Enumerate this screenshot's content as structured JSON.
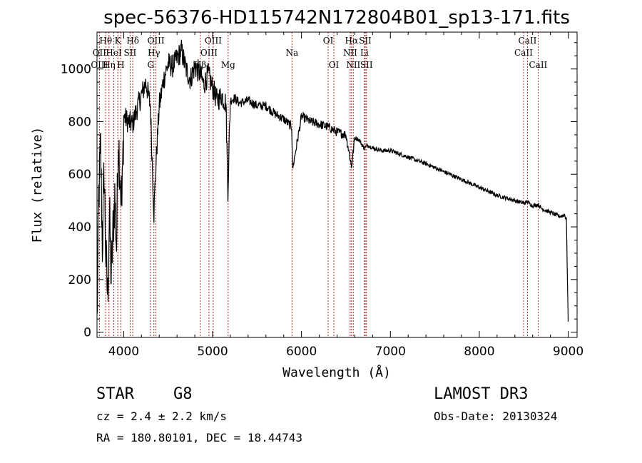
{
  "chart_data": {
    "type": "line",
    "title": "spec-56376-HD115742N172804B01_sp13-171.fits",
    "xlabel": "Wavelength (Å)",
    "ylabel": "Flux (relative)",
    "xlim": [
      3700,
      9100
    ],
    "ylim": [
      -20,
      1140
    ],
    "xticks": [
      4000,
      5000,
      6000,
      7000,
      8000,
      9000
    ],
    "yticks": [
      0,
      200,
      400,
      600,
      800,
      1000
    ],
    "series": [
      {
        "name": "spectrum",
        "x": [
          3700,
          3720,
          3740,
          3760,
          3780,
          3800,
          3820,
          3840,
          3860,
          3880,
          3900,
          3920,
          3940,
          3960,
          3980,
          4000,
          4050,
          4100,
          4150,
          4200,
          4250,
          4300,
          4340,
          4360,
          4400,
          4450,
          4500,
          4550,
          4600,
          4650,
          4700,
          4750,
          4800,
          4860,
          4900,
          4950,
          5000,
          5050,
          5100,
          5150,
          5172,
          5200,
          5250,
          5300,
          5400,
          5500,
          5600,
          5700,
          5800,
          5890,
          5900,
          6000,
          6100,
          6200,
          6300,
          6400,
          6500,
          6563,
          6600,
          6650,
          6700,
          6750,
          6800,
          6900,
          7000,
          7200,
          7400,
          7600,
          7800,
          8000,
          8200,
          8400,
          8498,
          8542,
          8600,
          8662,
          8700,
          8800,
          8900,
          8960,
          8980,
          9000
        ],
        "y": [
          30,
          520,
          700,
          330,
          620,
          280,
          130,
          450,
          200,
          380,
          520,
          330,
          750,
          600,
          470,
          820,
          800,
          790,
          850,
          900,
          950,
          860,
          450,
          620,
          860,
          960,
          1020,
          1010,
          1040,
          1070,
          1000,
          960,
          1010,
          980,
          940,
          980,
          930,
          880,
          900,
          870,
          540,
          880,
          890,
          870,
          880,
          860,
          860,
          830,
          810,
          780,
          620,
          820,
          800,
          790,
          780,
          760,
          750,
          630,
          740,
          730,
          700,
          710,
          700,
          690,
          690,
          665,
          640,
          610,
          580,
          550,
          520,
          500,
          490,
          495,
          480,
          485,
          470,
          455,
          440,
          445,
          430,
          40
        ]
      }
    ],
    "emission_lines": [
      {
        "label": "Hθ",
        "x": 3798,
        "row": 1
      },
      {
        "label": "OII",
        "x": 3727,
        "row": 2
      },
      {
        "label": "OIII",
        "x": 3727,
        "row": 3
      },
      {
        "label": "Hη",
        "x": 3835,
        "row": 3
      },
      {
        "label": "HeI",
        "x": 3889,
        "row": 2
      },
      {
        "label": "K",
        "x": 3934,
        "row": 1
      },
      {
        "label": "H",
        "x": 3968,
        "row": 3
      },
      {
        "label": "SII",
        "x": 4072,
        "row": 2
      },
      {
        "label": "Hδ",
        "x": 4102,
        "row": 1
      },
      {
        "label": "OIII",
        "x": 4363,
        "row": 1
      },
      {
        "label": "Hγ",
        "x": 4340,
        "row": 2
      },
      {
        "label": "G",
        "x": 4304,
        "row": 3
      },
      {
        "label": "OIII",
        "x": 5007,
        "row": 1
      },
      {
        "label": "OIII",
        "x": 4959,
        "row": 2
      },
      {
        "label": "Hβ",
        "x": 4861,
        "row": 3
      },
      {
        "label": "Mg",
        "x": 5175,
        "row": 3
      },
      {
        "label": "Na",
        "x": 5893,
        "row": 2
      },
      {
        "label": "OI",
        "x": 6300,
        "row": 1
      },
      {
        "label": "OI",
        "x": 6364,
        "row": 3
      },
      {
        "label": "Hα",
        "x": 6563,
        "row": 1
      },
      {
        "label": "NII",
        "x": 6548,
        "row": 2
      },
      {
        "label": "NII",
        "x": 6583,
        "row": 3
      },
      {
        "label": "SII",
        "x": 6717,
        "row": 1
      },
      {
        "label": "Li",
        "x": 6708,
        "row": 2
      },
      {
        "label": "SII",
        "x": 6731,
        "row": 3
      },
      {
        "label": "CaII",
        "x": 8542,
        "row": 1
      },
      {
        "label": "CaII",
        "x": 8498,
        "row": 2
      },
      {
        "label": "CaII",
        "x": 8662,
        "row": 3
      }
    ],
    "marker_lines_x": [
      3727,
      3798,
      3835,
      3889,
      3934,
      3968,
      4072,
      4102,
      4304,
      4340,
      4363,
      4861,
      4959,
      5007,
      5175,
      5893,
      6300,
      6364,
      6548,
      6563,
      6583,
      6708,
      6717,
      6731,
      8498,
      8542,
      8662
    ]
  },
  "info": {
    "object_class": "STAR",
    "subclass": "G8",
    "survey": "LAMOST DR3",
    "cz": "cz = 2.4 ± 2.2 km/s",
    "obs_date": "Obs-Date: 20130324",
    "coords": "RA = 180.80101, DEC =  18.44743"
  },
  "colors": {
    "line": "#000000",
    "marker": "#b22222",
    "background": "#ffffff"
  }
}
